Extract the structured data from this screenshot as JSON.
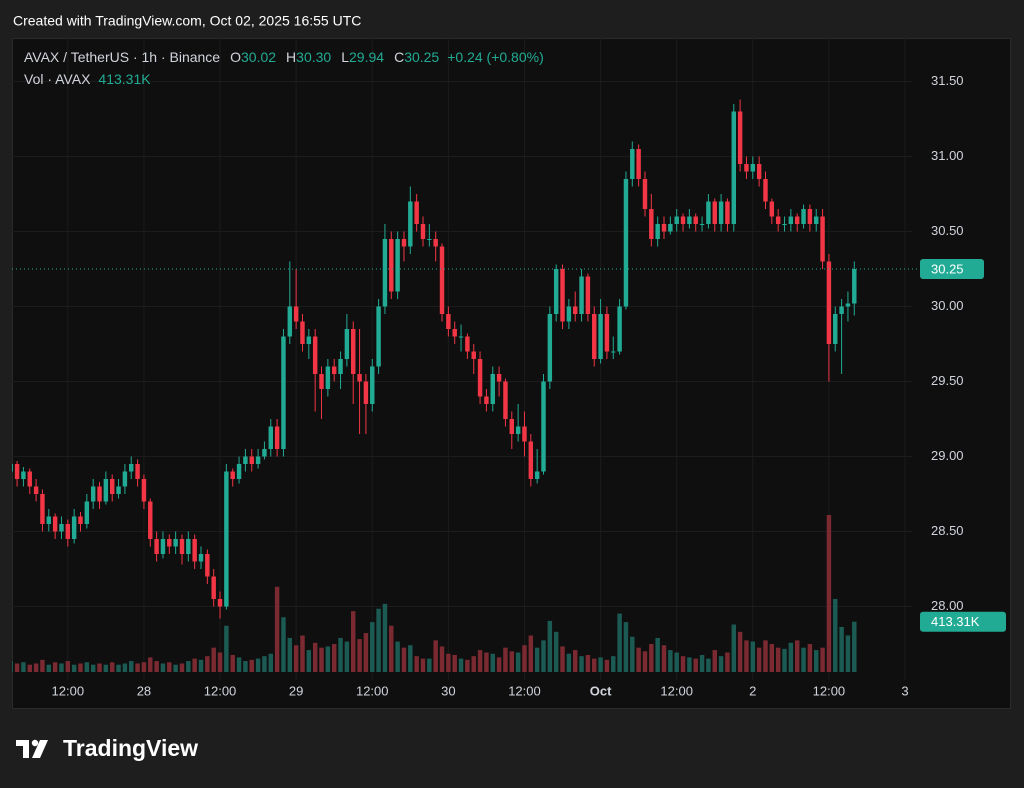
{
  "header": {
    "created": "Created with TradingView.com, Oct 02, 2025 16:55 UTC"
  },
  "legend": {
    "symbol": "AVAX / TetherUS · 1h · Binance",
    "ohlc": [
      {
        "key": "O",
        "value": "30.02"
      },
      {
        "key": "H",
        "value": "30.30"
      },
      {
        "key": "L",
        "value": "29.94"
      },
      {
        "key": "C",
        "value": "30.25"
      }
    ],
    "change": "+0.24 (+0.80%)",
    "volume_name": "Vol · AVAX",
    "volume_value": "413.31K"
  },
  "footer": {
    "brand": "TradingView"
  },
  "chart_data": {
    "type": "candlestick",
    "up_color": "#22ab94",
    "down_color": "#f23645",
    "up_volume_color": "#1c5b54",
    "down_volume_color": "#7b2a32",
    "grid": true,
    "xlim": [
      3.2,
      145.1
    ],
    "xticks": [
      {
        "value": 12,
        "label": "12:00"
      },
      {
        "value": 24,
        "label": "28"
      },
      {
        "value": 36,
        "label": "12:00"
      },
      {
        "value": 48,
        "label": "29"
      },
      {
        "value": 60,
        "label": "12:00"
      },
      {
        "value": 72,
        "label": "30"
      },
      {
        "value": 84,
        "label": "12:00"
      },
      {
        "value": 96,
        "label": "Oct",
        "bold": true
      },
      {
        "value": 108,
        "label": "12:00"
      },
      {
        "value": 120,
        "label": "2"
      },
      {
        "value": 132,
        "label": "12:00"
      },
      {
        "value": 144,
        "label": "3"
      }
    ],
    "ylim": [
      27.51,
      31.79
    ],
    "yticks": [
      {
        "value": 28,
        "label": "28.00"
      },
      {
        "value": 28.5,
        "label": "28.50"
      },
      {
        "value": 29,
        "label": "29.00"
      },
      {
        "value": 29.5,
        "label": "29.50"
      },
      {
        "value": 30,
        "label": "30.00"
      },
      {
        "value": 30.5,
        "label": "30.50"
      },
      {
        "value": 31,
        "label": "31.00"
      },
      {
        "value": 31.5,
        "label": "31.50"
      }
    ],
    "last_price": {
      "value": 30.25,
      "label": "30.25"
    },
    "volume_tag": "413.31K",
    "x": [
      3,
      4,
      5,
      6,
      7,
      8,
      9,
      10,
      11,
      12,
      13,
      14,
      15,
      16,
      17,
      18,
      19,
      20,
      21,
      22,
      23,
      24,
      25,
      26,
      27,
      28,
      29,
      30,
      31,
      32,
      33,
      34,
      35,
      36,
      37,
      38,
      39,
      40,
      41,
      42,
      43,
      44,
      45,
      46,
      47,
      48,
      49,
      50,
      51,
      52,
      53,
      54,
      55,
      56,
      57,
      58,
      59,
      60,
      61,
      62,
      63,
      64,
      65,
      66,
      67,
      68,
      69,
      70,
      71,
      72,
      73,
      74,
      75,
      76,
      77,
      78,
      79,
      80,
      81,
      82,
      83,
      84,
      85,
      86,
      87,
      88,
      89,
      90,
      91,
      92,
      93,
      94,
      95,
      96,
      97,
      98,
      99,
      100,
      101,
      102,
      103,
      104,
      105,
      106,
      107,
      108,
      109,
      110,
      111,
      112,
      113,
      114,
      115,
      116,
      117,
      118,
      119,
      120,
      121,
      122,
      123,
      124,
      125,
      126,
      127,
      128,
      129,
      130,
      131,
      132,
      133,
      134,
      135,
      136
    ],
    "candles": [
      [
        28.9,
        28.98,
        28.82,
        28.95
      ],
      [
        28.95,
        28.97,
        28.8,
        28.85
      ],
      [
        28.85,
        28.93,
        28.8,
        28.9
      ],
      [
        28.9,
        28.92,
        28.75,
        28.8
      ],
      [
        28.8,
        28.85,
        28.7,
        28.75
      ],
      [
        28.75,
        28.78,
        28.5,
        28.55
      ],
      [
        28.55,
        28.65,
        28.5,
        28.6
      ],
      [
        28.6,
        28.62,
        28.45,
        28.5
      ],
      [
        28.5,
        28.6,
        28.45,
        28.55
      ],
      [
        28.55,
        28.58,
        28.4,
        28.45
      ],
      [
        28.45,
        28.65,
        28.42,
        28.6
      ],
      [
        28.6,
        28.63,
        28.5,
        28.55
      ],
      [
        28.55,
        28.75,
        28.52,
        28.7
      ],
      [
        28.7,
        28.85,
        28.65,
        28.8
      ],
      [
        28.8,
        28.83,
        28.65,
        28.7
      ],
      [
        28.7,
        28.9,
        28.68,
        28.85
      ],
      [
        28.85,
        28.88,
        28.7,
        28.75
      ],
      [
        28.75,
        28.85,
        28.72,
        28.8
      ],
      [
        28.8,
        28.95,
        28.75,
        28.9
      ],
      [
        28.9,
        29.0,
        28.85,
        28.95
      ],
      [
        28.95,
        28.98,
        28.8,
        28.85
      ],
      [
        28.85,
        28.88,
        28.65,
        28.7
      ],
      [
        28.7,
        28.72,
        28.4,
        28.45
      ],
      [
        28.45,
        28.5,
        28.3,
        28.35
      ],
      [
        28.35,
        28.5,
        28.32,
        28.45
      ],
      [
        28.45,
        28.48,
        28.35,
        28.4
      ],
      [
        28.4,
        28.5,
        28.35,
        28.45
      ],
      [
        28.45,
        28.48,
        28.28,
        28.35
      ],
      [
        28.35,
        28.5,
        28.3,
        28.45
      ],
      [
        28.45,
        28.48,
        28.25,
        28.3
      ],
      [
        28.3,
        28.4,
        28.25,
        28.35
      ],
      [
        28.35,
        28.38,
        28.15,
        28.2
      ],
      [
        28.2,
        28.25,
        28.0,
        28.05
      ],
      [
        28.05,
        28.1,
        27.92,
        28.0
      ],
      [
        28.0,
        28.95,
        27.98,
        28.9
      ],
      [
        28.9,
        28.92,
        28.8,
        28.85
      ],
      [
        28.85,
        29.0,
        28.82,
        28.95
      ],
      [
        28.95,
        29.05,
        28.9,
        29.0
      ],
      [
        29.0,
        29.05,
        28.9,
        28.95
      ],
      [
        28.95,
        29.05,
        28.92,
        29.0
      ],
      [
        29.0,
        29.1,
        28.98,
        29.05
      ],
      [
        29.05,
        29.25,
        29.0,
        29.2
      ],
      [
        29.2,
        29.25,
        29.0,
        29.05
      ],
      [
        29.05,
        29.85,
        29.0,
        29.8
      ],
      [
        29.8,
        30.3,
        29.75,
        30.0
      ],
      [
        30.0,
        30.25,
        29.85,
        29.9
      ],
      [
        29.9,
        29.95,
        29.7,
        29.75
      ],
      [
        29.75,
        29.85,
        29.65,
        29.8
      ],
      [
        29.8,
        29.85,
        29.3,
        29.55
      ],
      [
        29.55,
        29.6,
        29.25,
        29.45
      ],
      [
        29.45,
        29.65,
        29.4,
        29.6
      ],
      [
        29.6,
        29.65,
        29.5,
        29.55
      ],
      [
        29.55,
        29.7,
        29.45,
        29.65
      ],
      [
        29.65,
        29.95,
        29.6,
        29.85
      ],
      [
        29.85,
        29.9,
        29.35,
        29.55
      ],
      [
        29.55,
        29.85,
        29.15,
        29.5
      ],
      [
        29.5,
        29.55,
        29.15,
        29.35
      ],
      [
        29.35,
        29.65,
        29.3,
        29.6
      ],
      [
        29.6,
        30.05,
        29.55,
        30.0
      ],
      [
        30.0,
        30.55,
        29.95,
        30.45
      ],
      [
        30.45,
        30.5,
        30.05,
        30.1
      ],
      [
        30.1,
        30.5,
        30.05,
        30.45
      ],
      [
        30.45,
        30.5,
        30.3,
        30.4
      ],
      [
        30.4,
        30.8,
        30.35,
        30.7
      ],
      [
        30.7,
        30.75,
        30.5,
        30.55
      ],
      [
        30.55,
        30.6,
        30.4,
        30.45
      ],
      [
        30.45,
        30.55,
        30.4,
        30.45
      ],
      [
        30.45,
        30.5,
        30.3,
        30.4
      ],
      [
        30.4,
        30.42,
        29.9,
        29.95
      ],
      [
        29.95,
        30.0,
        29.8,
        29.85
      ],
      [
        29.85,
        29.9,
        29.75,
        29.8
      ],
      [
        29.8,
        29.88,
        29.7,
        29.8
      ],
      [
        29.8,
        29.82,
        29.65,
        29.7
      ],
      [
        29.7,
        29.75,
        29.55,
        29.65
      ],
      [
        29.65,
        29.7,
        29.35,
        29.4
      ],
      [
        29.4,
        29.45,
        29.3,
        29.35
      ],
      [
        29.35,
        29.6,
        29.3,
        29.55
      ],
      [
        29.55,
        29.6,
        29.4,
        29.5
      ],
      [
        29.5,
        29.52,
        29.2,
        29.25
      ],
      [
        29.25,
        29.3,
        29.05,
        29.15
      ],
      [
        29.15,
        29.35,
        29.1,
        29.2
      ],
      [
        29.2,
        29.3,
        29.0,
        29.1
      ],
      [
        29.1,
        29.15,
        28.8,
        28.85
      ],
      [
        28.85,
        29.05,
        28.82,
        28.9
      ],
      [
        28.9,
        29.55,
        28.88,
        29.5
      ],
      [
        29.5,
        30.0,
        29.45,
        29.95
      ],
      [
        29.95,
        30.28,
        29.9,
        30.25
      ],
      [
        30.25,
        30.28,
        29.85,
        29.9
      ],
      [
        29.9,
        30.05,
        29.85,
        30.0
      ],
      [
        30.0,
        30.1,
        29.9,
        29.95
      ],
      [
        29.95,
        30.25,
        29.9,
        30.2
      ],
      [
        30.2,
        30.22,
        29.9,
        29.95
      ],
      [
        29.95,
        30.0,
        29.6,
        29.65
      ],
      [
        29.65,
        30.05,
        29.62,
        29.95
      ],
      [
        29.95,
        30.0,
        29.65,
        29.7
      ],
      [
        29.7,
        29.8,
        29.65,
        29.7
      ],
      [
        29.7,
        30.05,
        29.68,
        30.0
      ],
      [
        30.0,
        30.9,
        29.98,
        30.85
      ],
      [
        30.85,
        31.1,
        30.8,
        31.05
      ],
      [
        31.05,
        31.08,
        30.8,
        30.85
      ],
      [
        30.85,
        30.9,
        30.6,
        30.65
      ],
      [
        30.65,
        30.75,
        30.4,
        30.45
      ],
      [
        30.45,
        30.6,
        30.4,
        30.55
      ],
      [
        30.55,
        30.6,
        30.45,
        30.5
      ],
      [
        30.5,
        30.6,
        30.48,
        30.55
      ],
      [
        30.55,
        30.65,
        30.5,
        30.6
      ],
      [
        30.6,
        30.62,
        30.5,
        30.55
      ],
      [
        30.55,
        30.65,
        30.52,
        30.6
      ],
      [
        30.6,
        30.62,
        30.5,
        30.55
      ],
      [
        30.55,
        30.6,
        30.5,
        30.55
      ],
      [
        30.55,
        30.75,
        30.52,
        30.7
      ],
      [
        30.7,
        30.72,
        30.5,
        30.55
      ],
      [
        30.55,
        30.75,
        30.5,
        30.7
      ],
      [
        30.7,
        30.72,
        30.5,
        30.55
      ],
      [
        30.55,
        31.35,
        30.5,
        31.3
      ],
      [
        31.3,
        31.38,
        30.9,
        30.95
      ],
      [
        30.95,
        31.0,
        30.85,
        30.9
      ],
      [
        30.9,
        31.0,
        30.85,
        30.95
      ],
      [
        30.95,
        31.0,
        30.8,
        30.85
      ],
      [
        30.85,
        30.9,
        30.65,
        30.7
      ],
      [
        30.7,
        30.72,
        30.55,
        30.6
      ],
      [
        30.6,
        30.65,
        30.5,
        30.55
      ],
      [
        30.55,
        30.6,
        30.5,
        30.55
      ],
      [
        30.55,
        30.65,
        30.5,
        30.6
      ],
      [
        30.6,
        30.62,
        30.5,
        30.55
      ],
      [
        30.55,
        30.68,
        30.52,
        30.65
      ],
      [
        30.65,
        30.68,
        30.5,
        30.55
      ],
      [
        30.55,
        30.65,
        30.5,
        30.6
      ],
      [
        30.6,
        30.65,
        30.25,
        30.3
      ],
      [
        30.3,
        30.35,
        29.5,
        29.75
      ],
      [
        29.75,
        30.0,
        29.7,
        29.95
      ],
      [
        29.95,
        30.05,
        29.55,
        30.0
      ],
      [
        30.0,
        30.1,
        29.9,
        30.02
      ],
      [
        30.02,
        30.3,
        29.94,
        30.25
      ]
    ],
    "volumes": [
      90000,
      70000,
      80000,
      60000,
      70000,
      100000,
      60000,
      80000,
      70000,
      90000,
      60000,
      70000,
      80000,
      60000,
      70000,
      60000,
      80000,
      60000,
      70000,
      90000,
      70000,
      80000,
      120000,
      90000,
      70000,
      80000,
      60000,
      70000,
      90000,
      110000,
      100000,
      130000,
      200000,
      160000,
      380000,
      140000,
      120000,
      90000,
      100000,
      110000,
      130000,
      150000,
      700000,
      450000,
      280000,
      220000,
      300000,
      180000,
      240000,
      200000,
      210000,
      230000,
      280000,
      250000,
      500000,
      270000,
      320000,
      410000,
      520000,
      560000,
      380000,
      250000,
      200000,
      220000,
      130000,
      110000,
      110000,
      260000,
      210000,
      150000,
      140000,
      110000,
      100000,
      130000,
      180000,
      160000,
      150000,
      120000,
      200000,
      170000,
      160000,
      220000,
      300000,
      200000,
      260000,
      420000,
      330000,
      210000,
      150000,
      180000,
      130000,
      140000,
      110000,
      120000,
      100000,
      130000,
      480000,
      410000,
      290000,
      200000,
      170000,
      230000,
      280000,
      220000,
      180000,
      160000,
      130000,
      120000,
      110000,
      140000,
      110000,
      180000,
      130000,
      160000,
      390000,
      330000,
      260000,
      250000,
      200000,
      260000,
      230000,
      200000,
      190000,
      240000,
      260000,
      200000,
      230000,
      180000,
      200000,
      1290000,
      600000,
      370000,
      300000,
      413310
    ]
  }
}
